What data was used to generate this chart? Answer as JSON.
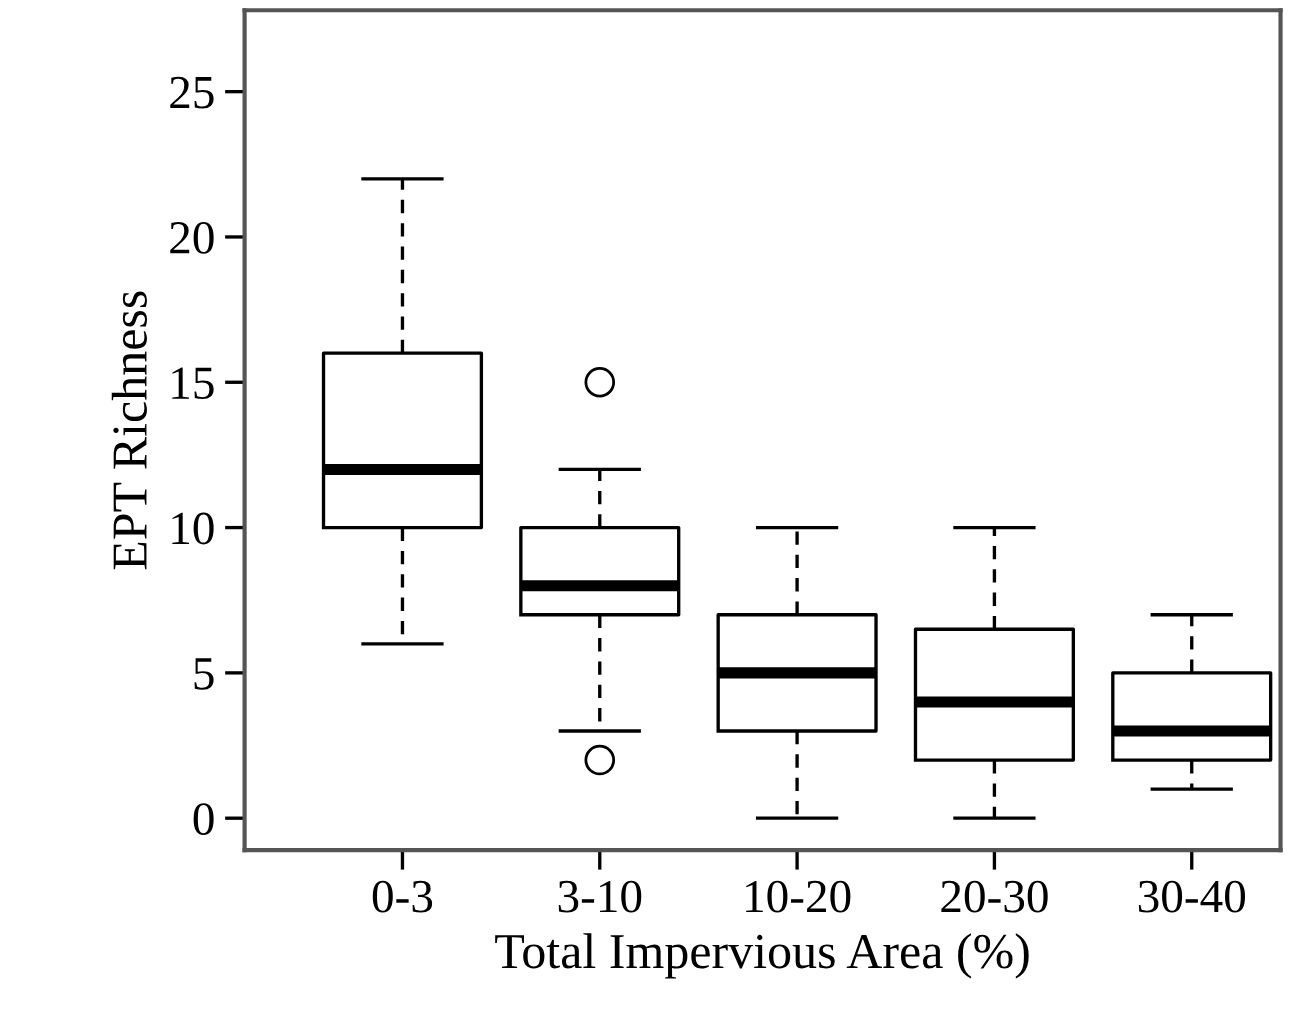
{
  "chart_data": {
    "type": "box",
    "xlabel": "Total Impervious Area (%)",
    "ylabel": "EPT Richness",
    "categories": [
      "0-3",
      "3-10",
      "10-20",
      "20-30",
      "30-40"
    ],
    "boxes": [
      {
        "low": 6,
        "q1": 10,
        "median": 12,
        "q3": 16,
        "high": 22
      },
      {
        "low": 3,
        "q1": 7,
        "median": 8,
        "q3": 10,
        "high": 12,
        "outliers": [
          15,
          2
        ]
      },
      {
        "low": 0,
        "q1": 3,
        "median": 5,
        "q3": 7,
        "high": 10
      },
      {
        "low": 0,
        "q1": 2,
        "median": 4,
        "q3": 6.5,
        "high": 10
      },
      {
        "low": 1,
        "q1": 2,
        "median": 3,
        "q3": 5,
        "high": 7
      }
    ],
    "ylim": [
      -1.1,
      27.8
    ],
    "yticks": [
      0,
      5,
      10,
      15,
      20,
      25
    ],
    "grid": false
  }
}
